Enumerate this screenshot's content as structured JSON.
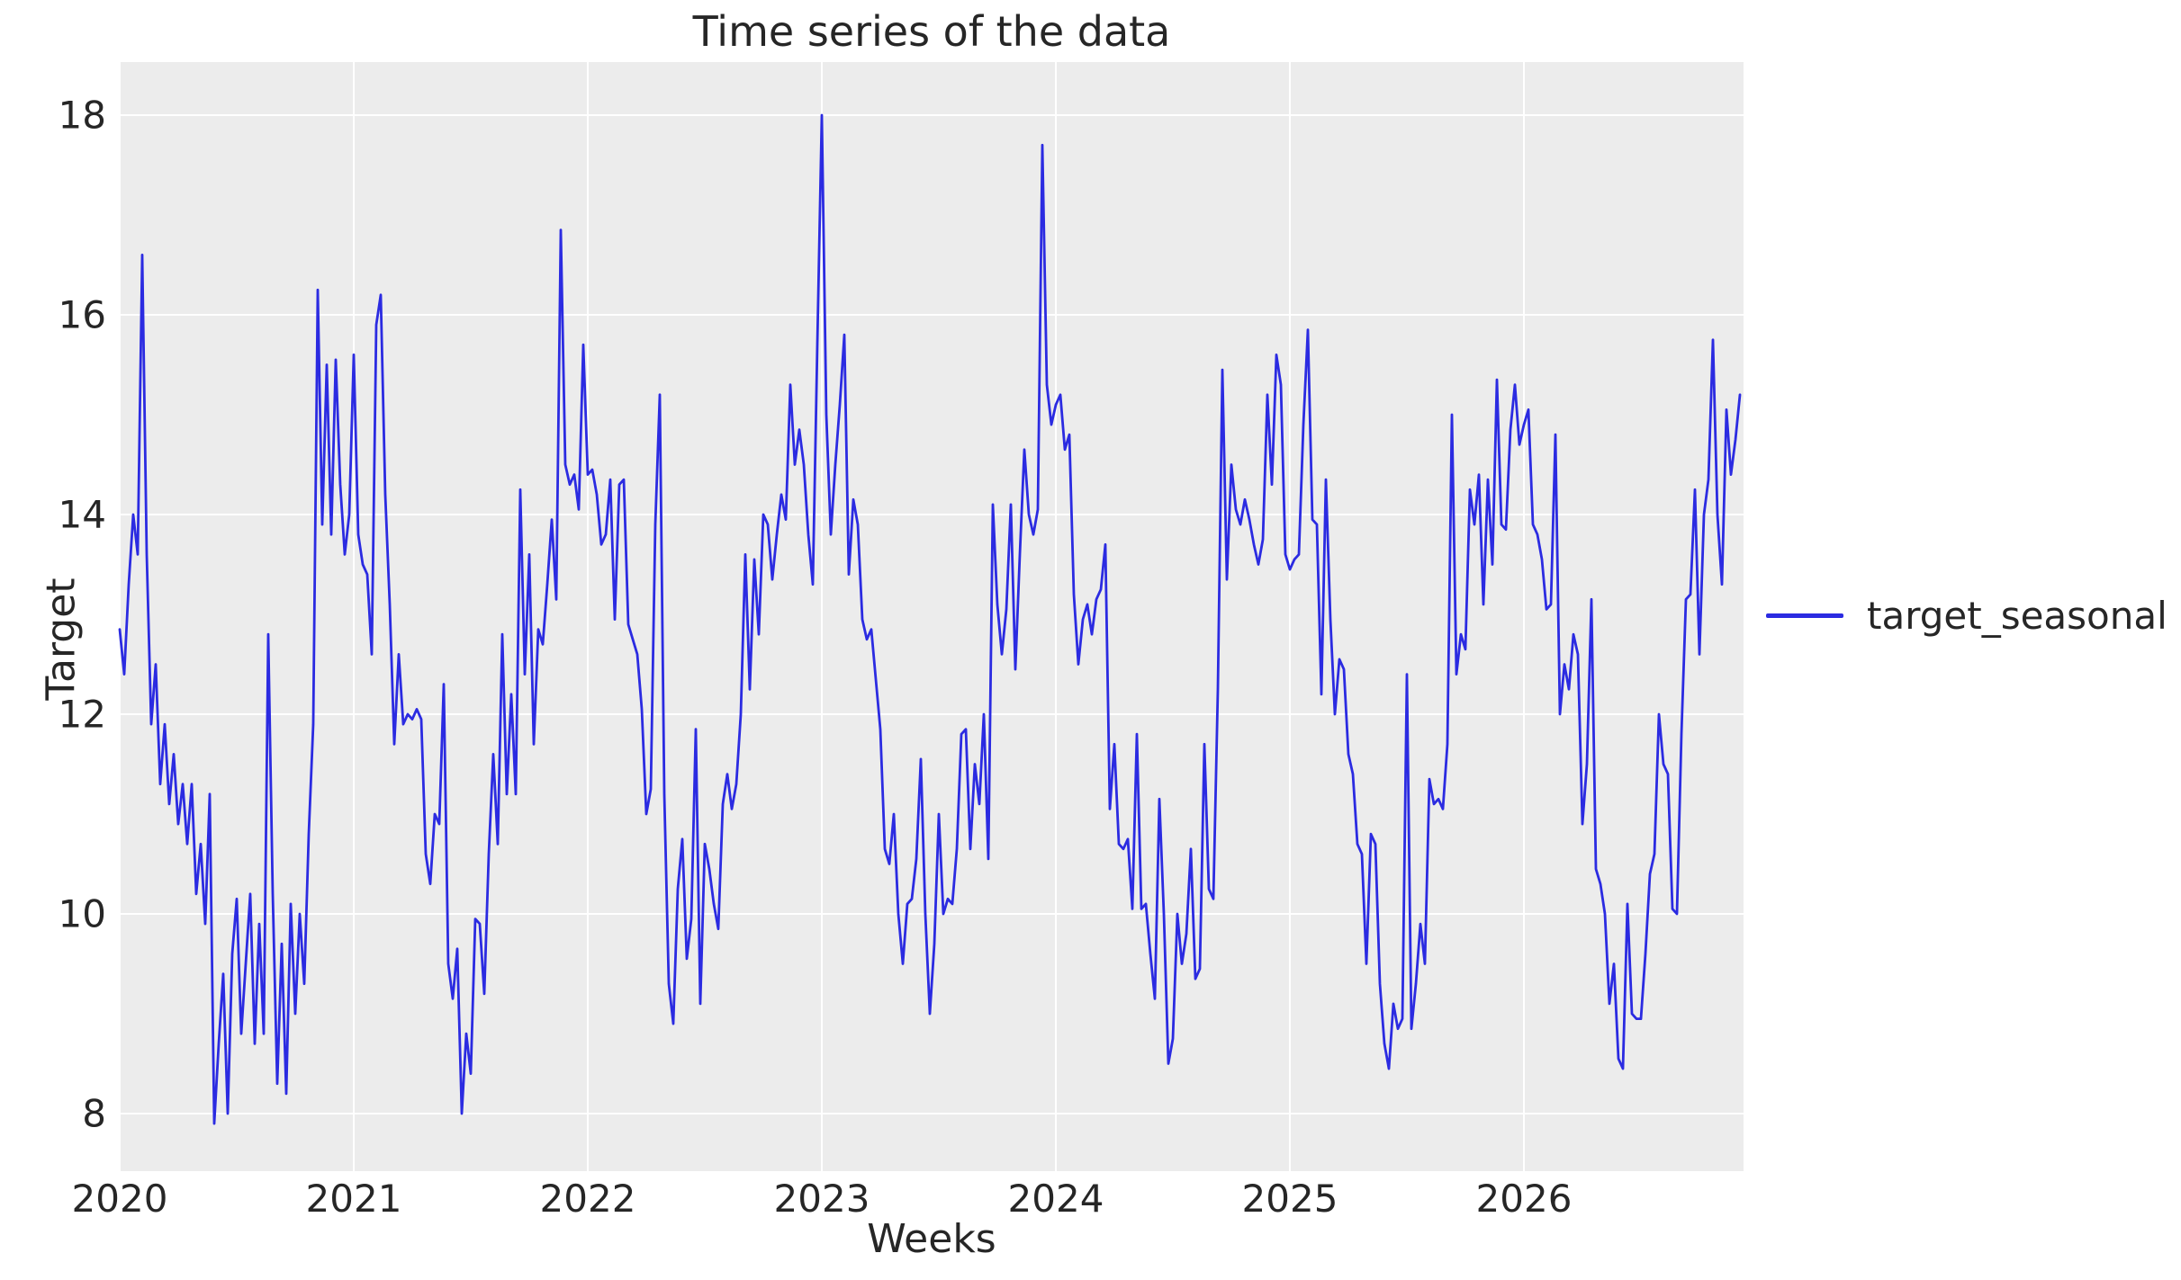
{
  "figure": {
    "title": "Time series of the data",
    "xlabel": "Weeks",
    "ylabel": "Target",
    "legend": {
      "label": "target_seasonal"
    },
    "colors": {
      "line": "#2b2be1",
      "plot_background": "#ececec",
      "gridline": "#ffffff",
      "text": "#262626",
      "figure_background": "#ffffff"
    }
  },
  "chart_data": {
    "type": "line",
    "title": "Time series of the data",
    "xlabel": "Weeks",
    "ylabel": "Target",
    "legend_entries": [
      "target_seasonal"
    ],
    "legend_position": "center right, outside axes",
    "grid": true,
    "x_tick_labels": [
      2020,
      2021,
      2022,
      2023,
      2024,
      2025,
      2026
    ],
    "y_ticks": [
      8,
      10,
      12,
      14,
      16,
      18
    ],
    "ylim": [
      7.42,
      18.53
    ],
    "x_start_year": 2020,
    "points_per_year": 52,
    "sampling": "weekly",
    "series": [
      {
        "name": "target_seasonal",
        "values": [
          12.85,
          12.4,
          13.3,
          14.0,
          13.6,
          16.6,
          13.6,
          11.9,
          12.5,
          11.3,
          11.9,
          11.1,
          11.6,
          10.9,
          11.3,
          10.7,
          11.3,
          10.2,
          10.7,
          9.9,
          11.2,
          7.9,
          8.7,
          9.4,
          8.0,
          9.6,
          10.15,
          8.8,
          9.5,
          10.2,
          8.7,
          9.9,
          8.8,
          12.8,
          10.2,
          8.3,
          9.7,
          8.2,
          10.1,
          9.0,
          10.0,
          9.3,
          10.8,
          11.9,
          16.25,
          13.9,
          15.5,
          13.8,
          15.55,
          14.3,
          13.6,
          14.0,
          15.6,
          13.8,
          13.5,
          13.4,
          12.6,
          15.9,
          16.2,
          14.2,
          13.1,
          11.7,
          12.6,
          11.9,
          12.0,
          11.95,
          12.05,
          11.95,
          10.6,
          10.3,
          11.0,
          10.9,
          12.3,
          9.5,
          9.15,
          9.65,
          8.0,
          8.8,
          8.4,
          9.95,
          9.9,
          9.2,
          10.6,
          11.6,
          10.7,
          12.8,
          11.2,
          12.2,
          11.2,
          14.25,
          12.4,
          13.6,
          11.7,
          12.85,
          12.7,
          13.3,
          13.95,
          13.15,
          16.85,
          14.5,
          14.3,
          14.4,
          14.05,
          15.7,
          14.4,
          14.45,
          14.2,
          13.7,
          13.8,
          14.35,
          12.95,
          14.3,
          14.35,
          12.9,
          12.75,
          12.6,
          12.05,
          11.0,
          11.25,
          13.9,
          15.2,
          11.2,
          9.3,
          8.9,
          10.25,
          10.75,
          9.55,
          9.95,
          11.85,
          9.1,
          10.7,
          10.45,
          10.1,
          9.85,
          11.1,
          11.4,
          11.05,
          11.3,
          12.0,
          13.6,
          12.25,
          13.55,
          12.8,
          14.0,
          13.9,
          13.35,
          13.8,
          14.2,
          13.95,
          15.3,
          14.5,
          14.85,
          14.5,
          13.8,
          13.3,
          15.7,
          18.0,
          15.0,
          13.8,
          14.5,
          15.1,
          15.8,
          13.4,
          14.15,
          13.9,
          12.95,
          12.75,
          12.85,
          12.35,
          11.85,
          10.65,
          10.5,
          11.0,
          10.0,
          9.5,
          10.1,
          10.15,
          10.55,
          11.55,
          10.0,
          9.0,
          9.7,
          11.0,
          10.0,
          10.15,
          10.1,
          10.65,
          11.8,
          11.85,
          10.65,
          11.5,
          11.1,
          12.0,
          10.55,
          14.1,
          13.1,
          12.6,
          13.05,
          14.1,
          12.45,
          13.6,
          14.65,
          14.0,
          13.8,
          14.05,
          17.7,
          15.3,
          14.9,
          15.1,
          15.2,
          14.65,
          14.8,
          13.2,
          12.5,
          12.95,
          13.1,
          12.8,
          13.15,
          13.25,
          13.7,
          11.05,
          11.7,
          10.7,
          10.65,
          10.75,
          10.05,
          11.8,
          10.05,
          10.1,
          9.6,
          9.15,
          11.15,
          10.0,
          8.5,
          8.75,
          10.0,
          9.5,
          9.8,
          10.65,
          9.35,
          9.45,
          11.7,
          10.25,
          10.15,
          12.25,
          15.45,
          13.35,
          14.5,
          14.05,
          13.9,
          14.15,
          13.95,
          13.7,
          13.5,
          13.75,
          15.2,
          14.3,
          15.6,
          15.3,
          13.6,
          13.45,
          13.55,
          13.6,
          14.9,
          15.85,
          13.95,
          13.9,
          12.2,
          14.35,
          12.95,
          12.0,
          12.55,
          12.45,
          11.6,
          11.4,
          10.7,
          10.6,
          9.5,
          10.8,
          10.7,
          9.3,
          8.7,
          8.45,
          9.1,
          8.85,
          8.95,
          12.4,
          8.85,
          9.3,
          9.9,
          9.5,
          11.35,
          11.1,
          11.15,
          11.05,
          11.7,
          15.0,
          12.4,
          12.8,
          12.65,
          14.25,
          13.9,
          14.4,
          13.1,
          14.35,
          13.5,
          15.35,
          13.9,
          13.85,
          14.85,
          15.3,
          14.7,
          14.9,
          15.05,
          13.9,
          13.8,
          13.55,
          13.05,
          13.1,
          14.8,
          12.0,
          12.5,
          12.25,
          12.8,
          12.6,
          10.9,
          11.5,
          13.15,
          10.45,
          10.3,
          10.0,
          9.1,
          9.5,
          8.55,
          8.45,
          10.1,
          9.0,
          8.95,
          8.95,
          9.6,
          10.4,
          10.6,
          12.0,
          11.5,
          11.4,
          10.05,
          10.0,
          11.8,
          13.15,
          13.2,
          14.25,
          12.6,
          14.0,
          14.35,
          15.75,
          14.0,
          13.3,
          15.05,
          14.4,
          14.75,
          15.2
        ]
      }
    ]
  }
}
